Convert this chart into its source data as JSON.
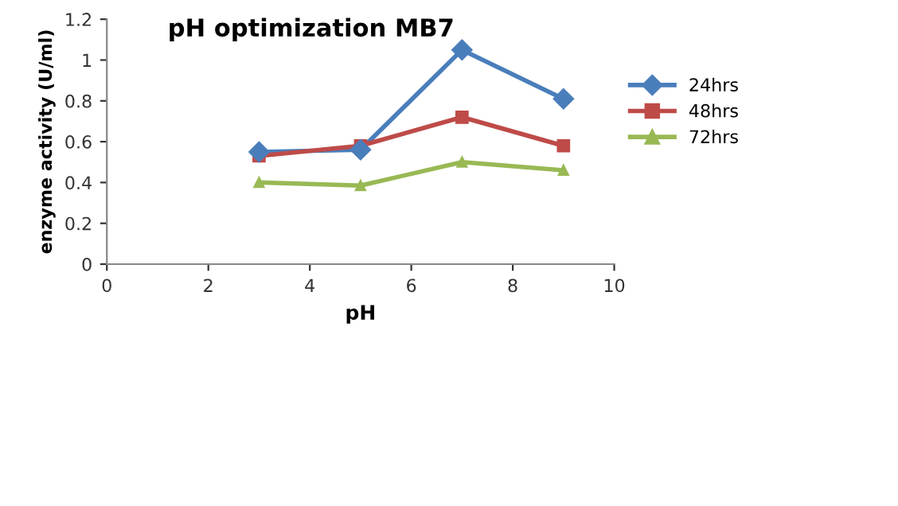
{
  "chart_data": {
    "type": "line",
    "title": "pH optimization MB7",
    "xlabel": "pH",
    "ylabel": "enzyme activity (U/ml)",
    "x": [
      3,
      5,
      7,
      9
    ],
    "series": [
      {
        "name": "24hrs",
        "color": "#4a7ebb",
        "marker": "diamond",
        "values": [
          0.55,
          0.56,
          1.05,
          0.81
        ]
      },
      {
        "name": "48hrs",
        "color": "#be4b48",
        "marker": "square",
        "values": [
          0.53,
          0.58,
          0.72,
          0.58
        ]
      },
      {
        "name": "72hrs",
        "color": "#98b954",
        "marker": "triangle",
        "values": [
          0.4,
          0.385,
          0.5,
          0.46
        ]
      }
    ],
    "xlim": [
      0,
      10
    ],
    "xticks": [
      0,
      2,
      4,
      6,
      8,
      10
    ],
    "ylim": [
      0,
      1.2
    ],
    "yticks": [
      0,
      0.2,
      0.4,
      0.6,
      0.8,
      1,
      1.2
    ],
    "grid": false,
    "legend": "right",
    "line_style": "solid"
  }
}
